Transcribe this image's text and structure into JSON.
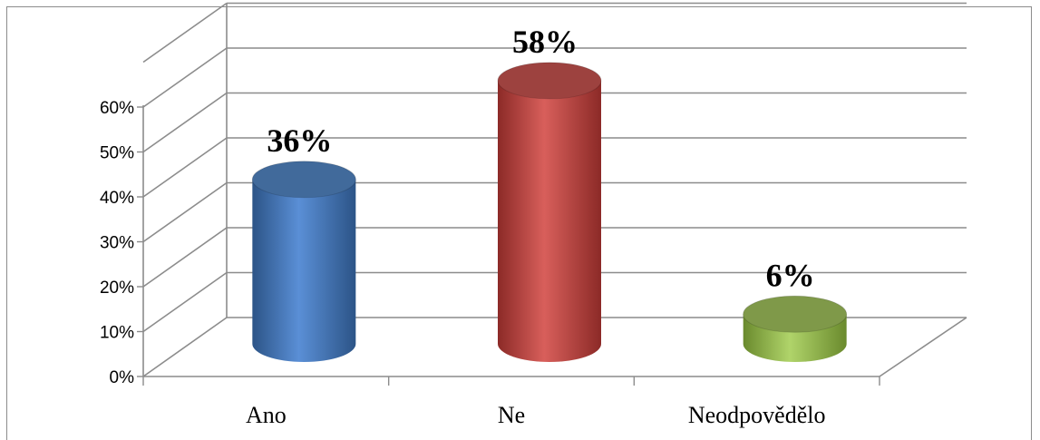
{
  "chart_data": {
    "type": "bar",
    "categories": [
      "Ano",
      "Ne",
      "Neodpovědělo"
    ],
    "values": [
      36,
      58,
      6
    ],
    "data_labels": [
      "36%",
      "58%",
      "6%"
    ],
    "ylim": [
      0,
      60
    ],
    "yticks": [
      "0%",
      "10%",
      "20%",
      "30%",
      "40%",
      "50%",
      "60%"
    ],
    "grid": true,
    "three_d": true,
    "colors": [
      "#4f81bd",
      "#c0504d",
      "#9bbb59"
    ]
  }
}
